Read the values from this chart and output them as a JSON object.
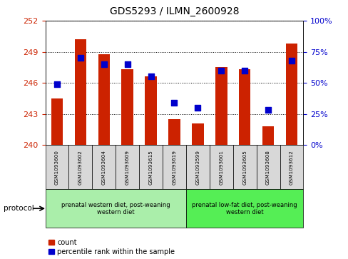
{
  "title": "GDS5293 / ILMN_2600928",
  "samples": [
    "GSM1093600",
    "GSM1093602",
    "GSM1093604",
    "GSM1093609",
    "GSM1093615",
    "GSM1093619",
    "GSM1093599",
    "GSM1093601",
    "GSM1093605",
    "GSM1093608",
    "GSM1093612"
  ],
  "count_values": [
    244.5,
    250.2,
    248.8,
    247.3,
    246.6,
    242.5,
    242.1,
    247.5,
    247.3,
    241.8,
    249.8
  ],
  "percentile_values": [
    49,
    70,
    65,
    65,
    55,
    34,
    30,
    60,
    60,
    28,
    68
  ],
  "ylim_left": [
    240,
    252
  ],
  "ylim_right": [
    0,
    100
  ],
  "yticks_left": [
    240,
    243,
    246,
    249,
    252
  ],
  "yticks_right": [
    0,
    25,
    50,
    75,
    100
  ],
  "bar_color": "#cc2200",
  "dot_color": "#0000cc",
  "group1_label": "prenatal western diet, post-weaning\nwestern diet",
  "group2_label": "prenatal low-fat diet, post-weaning\nwestern diet",
  "group1_color": "#aaeeaa",
  "group2_color": "#55ee55",
  "group1_samples": 6,
  "group2_samples": 5,
  "protocol_label": "protocol",
  "legend_count": "count",
  "legend_percentile": "percentile rank within the sample",
  "left_axis_color": "#cc2200",
  "right_axis_color": "#0000cc",
  "bar_width": 0.5,
  "dot_size": 28,
  "cell_color": "#d8d8d8"
}
